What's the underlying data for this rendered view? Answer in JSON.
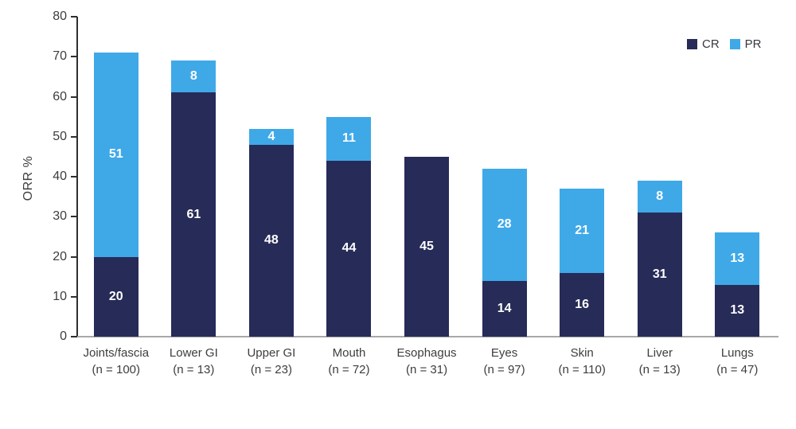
{
  "chart_data": {
    "type": "bar",
    "stacked": true,
    "title": "",
    "ylabel": "ORR %",
    "xlabel": "",
    "ylim": [
      0,
      80
    ],
    "y_ticks": [
      0,
      10,
      20,
      30,
      40,
      50,
      60,
      70,
      80
    ],
    "grid": false,
    "legend_position": "top-right",
    "categories": [
      "Joints/fascia",
      "Lower GI",
      "Upper GI",
      "Mouth",
      "Esophagus",
      "Eyes",
      "Skin",
      "Liver",
      "Lungs"
    ],
    "category_sublabels": [
      "(n = 100)",
      "(n = 13)",
      "(n = 23)",
      "(n = 72)",
      "(n = 31)",
      "(n = 97)",
      "(n = 110)",
      "(n = 13)",
      "(n = 47)"
    ],
    "series": [
      {
        "name": "CR",
        "color": "#272b58",
        "values": [
          20,
          61,
          48,
          44,
          45,
          14,
          16,
          31,
          13
        ]
      },
      {
        "name": "PR",
        "color": "#3fa9e8",
        "values": [
          51,
          8,
          4,
          11,
          0,
          28,
          21,
          8,
          13
        ]
      }
    ],
    "value_label_color": "#ffffff",
    "axis_color": "#2e2e2e",
    "baseline_color": "#a8a8a8",
    "text_color": "#3d3d3d"
  }
}
